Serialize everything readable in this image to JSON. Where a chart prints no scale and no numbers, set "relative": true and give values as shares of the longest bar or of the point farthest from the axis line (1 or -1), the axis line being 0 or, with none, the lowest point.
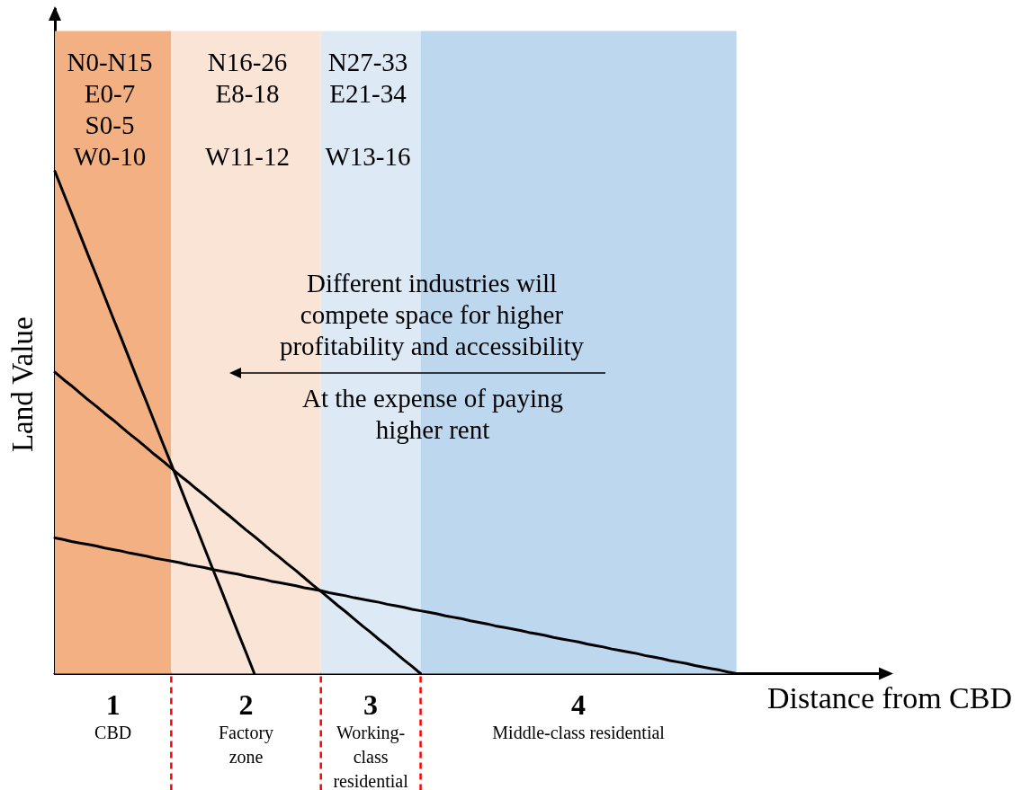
{
  "chart_data": {
    "type": "line",
    "relative": true,
    "xlabel": "Distance from CBD",
    "ylabel": "Land Value",
    "marker": "none",
    "line_style": "solid",
    "categories": [
      null,
      null,
      null,
      null,
      null,
      null,
      null,
      "1\nCBD",
      null,
      null,
      null,
      null,
      null,
      null,
      null,
      null,
      null,
      null,
      null,
      null,
      null,
      null,
      null,
      "2\nFactory\nzone",
      null,
      null,
      null,
      null,
      null,
      null,
      null,
      null,
      null,
      null,
      null,
      null,
      null,
      null,
      "3\nWorking-\nclass\nresidential",
      null,
      null,
      null,
      null,
      null,
      null,
      null,
      null,
      null,
      null,
      null,
      null,
      null,
      null,
      null,
      null,
      null,
      null,
      null,
      null,
      null,
      null,
      null,
      null,
      "4\nMiddle-class residential",
      null,
      null,
      null,
      null,
      null,
      null,
      null,
      null,
      null,
      null,
      null,
      null,
      null,
      null,
      null,
      null,
      null,
      null,
      null,
      null,
      null,
      null,
      null,
      null,
      null,
      null,
      null,
      null,
      null,
      null,
      null,
      null,
      null,
      null,
      null,
      null,
      null
    ],
    "series": [
      {
        "color": "#000000",
        "values": [
          1,
          0.958,
          0.917,
          0.875,
          0.833,
          0.792,
          0.75,
          0.708,
          0.667,
          0.625,
          0.583,
          0.542,
          0.5,
          0.458,
          0.417,
          0.375,
          0.333,
          0.292,
          0.25,
          0.208,
          0.167,
          0.125,
          0.083,
          0.042,
          0,
          null,
          null,
          null,
          null,
          null,
          null,
          null,
          null,
          null,
          null,
          null,
          null,
          null,
          null,
          null,
          null,
          null,
          null,
          null,
          null,
          null,
          null,
          null,
          null,
          null,
          null,
          null,
          null,
          null,
          null,
          null,
          null,
          null,
          null,
          null,
          null,
          null,
          null,
          null,
          null,
          null,
          null,
          null,
          null,
          null,
          null,
          null,
          null,
          null,
          null,
          null,
          null,
          null,
          null,
          null,
          null,
          null,
          null,
          null,
          null,
          null,
          null,
          null,
          null,
          null,
          null,
          null,
          null,
          null,
          null,
          null,
          null,
          null,
          null,
          null,
          null
        ]
      },
      {
        "color": "#000000",
        "values": [
          0.6,
          0.586,
          0.573,
          0.559,
          0.545,
          0.532,
          0.518,
          0.505,
          0.491,
          0.477,
          0.464,
          0.45,
          0.436,
          0.423,
          0.409,
          0.395,
          0.382,
          0.368,
          0.355,
          0.341,
          0.327,
          0.314,
          0.3,
          0.286,
          0.273,
          0.259,
          0.245,
          0.232,
          0.218,
          0.205,
          0.191,
          0.177,
          0.164,
          0.15,
          0.136,
          0.123,
          0.109,
          0.095,
          0.082,
          0.068,
          0.055,
          0.041,
          0.027,
          0.014,
          0,
          null,
          null,
          null,
          null,
          null,
          null,
          null,
          null,
          null,
          null,
          null,
          null,
          null,
          null,
          null,
          null,
          null,
          null,
          null,
          null,
          null,
          null,
          null,
          null,
          null,
          null,
          null,
          null,
          null,
          null,
          null,
          null,
          null,
          null,
          null,
          null,
          null,
          null,
          null,
          null,
          null,
          null,
          null,
          null,
          null,
          null,
          null,
          null,
          null,
          null,
          null,
          null,
          null,
          null,
          null,
          null
        ]
      },
      {
        "color": "#000000",
        "values": [
          0.27,
          0.267,
          0.263,
          0.26,
          0.257,
          0.254,
          0.25,
          0.247,
          0.244,
          0.24,
          0.237,
          0.234,
          0.23,
          0.227,
          0.224,
          0.221,
          0.217,
          0.214,
          0.211,
          0.207,
          0.204,
          0.201,
          0.198,
          0.194,
          0.191,
          0.188,
          0.184,
          0.181,
          0.178,
          0.175,
          0.171,
          0.168,
          0.165,
          0.161,
          0.158,
          0.155,
          0.151,
          0.148,
          0.145,
          0.142,
          0.138,
          0.135,
          0.132,
          0.128,
          0.125,
          0.122,
          0.119,
          0.115,
          0.112,
          0.109,
          0.105,
          0.102,
          0.099,
          0.095,
          0.092,
          0.089,
          0.086,
          0.082,
          0.079,
          0.076,
          0.072,
          0.069,
          0.066,
          0.063,
          0.059,
          0.056,
          0.053,
          0.049,
          0.046,
          0.043,
          0.04,
          0.036,
          0.033,
          0.03,
          0.026,
          0.023,
          0.02,
          0.016,
          0.013,
          0.01,
          0.007,
          0.003,
          0,
          null,
          null,
          null,
          null,
          null,
          null,
          null,
          null,
          null,
          null,
          null,
          null,
          null,
          null,
          null,
          null,
          null,
          null
        ]
      }
    ],
    "annotations": [
      "N0-N15\nE0-7\nS0-5\nW0-10",
      "N16-26\nE8-18\n\nW11-12",
      "N27-33\nE21-34\n\nW13-16",
      "Different industries will\ncompete space for higher\nprofitability and accessibility",
      "At the expense of paying\nhigher rent"
    ]
  }
}
